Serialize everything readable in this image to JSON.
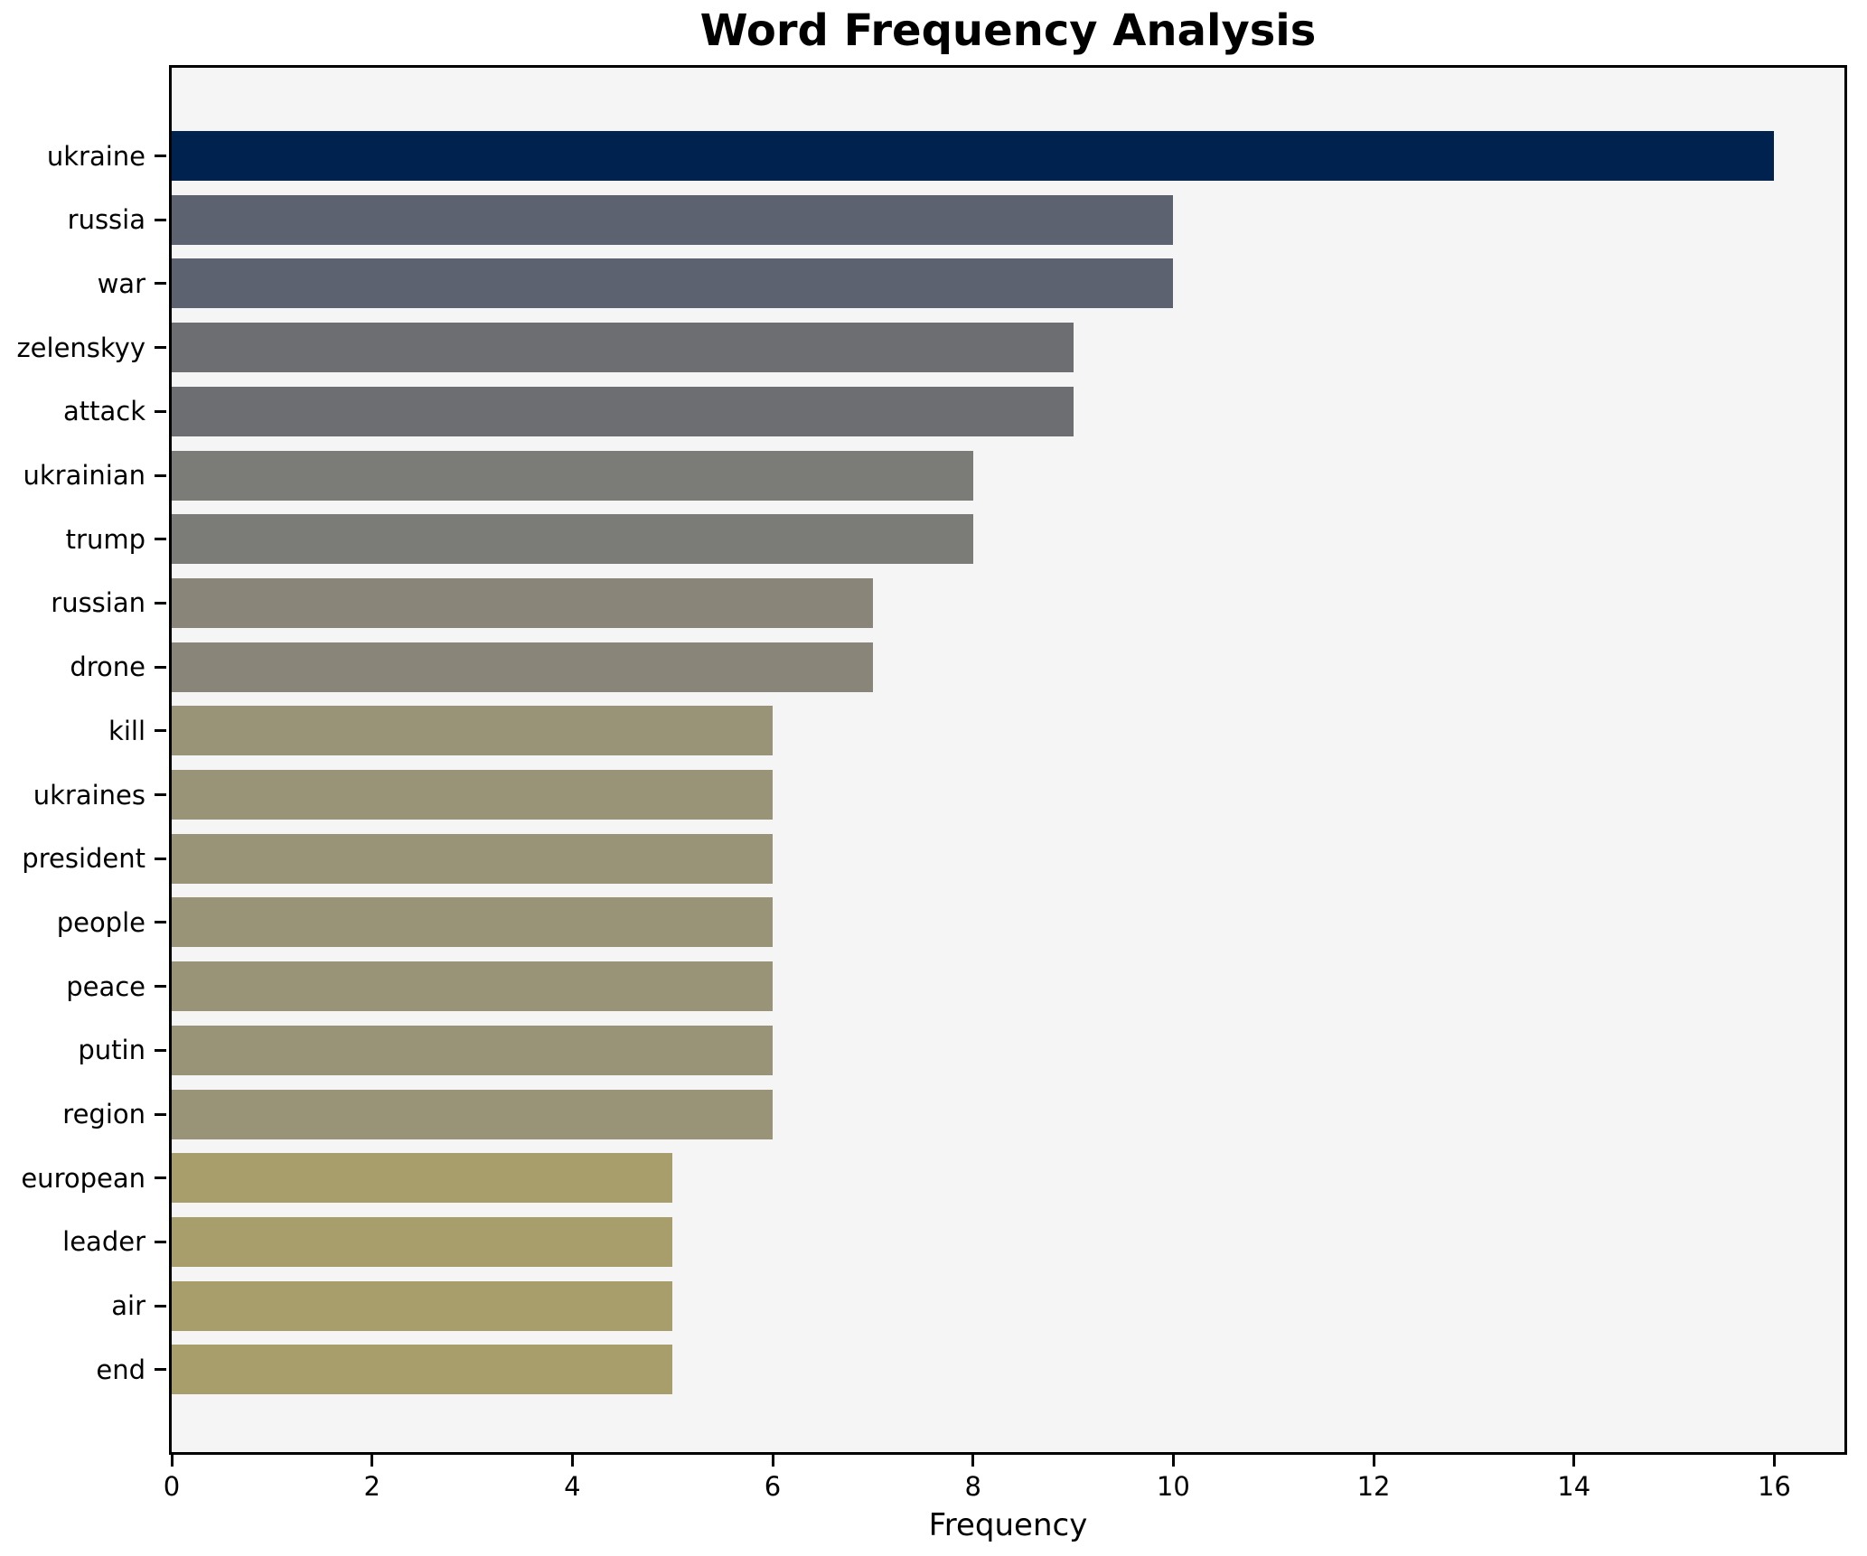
{
  "title": "Word Frequency Analysis",
  "chart_data": {
    "type": "bar",
    "orientation": "horizontal",
    "title": "Word Frequency Analysis",
    "xlabel": "Frequency",
    "ylabel": "",
    "categories": [
      "ukraine",
      "russia",
      "war",
      "zelenskyy",
      "attack",
      "ukrainian",
      "trump",
      "russian",
      "drone",
      "kill",
      "ukraines",
      "president",
      "people",
      "peace",
      "putin",
      "region",
      "european",
      "leader",
      "air",
      "end"
    ],
    "values": [
      16,
      10,
      10,
      9,
      9,
      8,
      8,
      7,
      7,
      6,
      6,
      6,
      6,
      6,
      6,
      6,
      5,
      5,
      5,
      5
    ],
    "bar_colors": [
      "#00224e",
      "#5c6270",
      "#5c6270",
      "#6c6e72",
      "#6c6e72",
      "#7b7b77",
      "#7b7b77",
      "#898679",
      "#898679",
      "#999377",
      "#999377",
      "#999377",
      "#999377",
      "#999377",
      "#999377",
      "#999377",
      "#a89e6c",
      "#a89e6c",
      "#a89e6c",
      "#a89e6c"
    ],
    "xticks": [
      0,
      2,
      4,
      6,
      8,
      10,
      12,
      14,
      16
    ],
    "xlim": [
      0,
      16.7
    ],
    "grid": false,
    "legend": null,
    "colors": {
      "plot_background": "#f5f5f6",
      "figure_background": "#ffffff",
      "spine": "#000000",
      "text": "#000000"
    }
  }
}
